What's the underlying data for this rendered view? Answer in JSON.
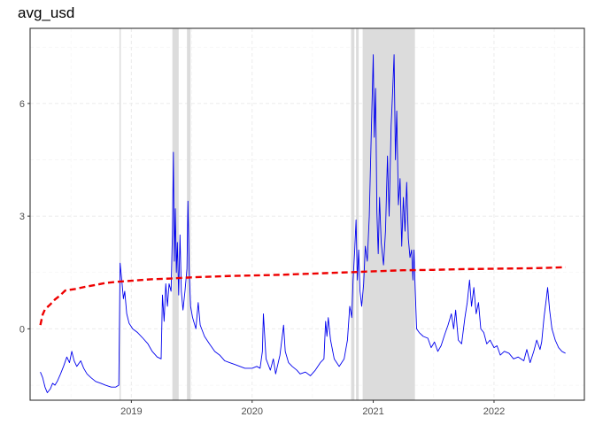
{
  "chart_data": {
    "type": "line",
    "title": "avg_usd",
    "xlabel": "",
    "ylabel": "",
    "xlim": [
      "2018-03-01",
      "2022-10-01"
    ],
    "ylim": [
      -1.9,
      8.0
    ],
    "x_ticks": [
      "2019-01-01",
      "2020-01-01",
      "2021-01-01",
      "2022-01-01"
    ],
    "x_tick_labels": [
      "2019",
      "2020",
      "2021",
      "2022"
    ],
    "y_ticks": [
      0,
      3,
      6
    ],
    "y_tick_labels": [
      "0",
      "3",
      "6"
    ],
    "grid": true,
    "legend": "none",
    "colors": {
      "series": "#0000ee",
      "trend": "#ee0000",
      "bands": "#dcdcdc"
    },
    "shaded_periods": [
      [
        "2018-11-26",
        "2018-11-30"
      ],
      [
        "2019-05-05",
        "2019-05-24"
      ],
      [
        "2019-06-18",
        "2019-06-29"
      ],
      [
        "2020-10-26",
        "2020-11-05"
      ],
      [
        "2020-11-10",
        "2020-11-18"
      ],
      [
        "2020-11-30",
        "2021-05-07"
      ]
    ],
    "series": [
      {
        "style": "solid",
        "points": [
          [
            "2018-04-01",
            -1.15
          ],
          [
            "2018-04-08",
            -1.3
          ],
          [
            "2018-04-15",
            -1.55
          ],
          [
            "2018-04-22",
            -1.7
          ],
          [
            "2018-05-01",
            -1.6
          ],
          [
            "2018-05-08",
            -1.45
          ],
          [
            "2018-05-15",
            -1.5
          ],
          [
            "2018-05-22",
            -1.4
          ],
          [
            "2018-06-01",
            -1.2
          ],
          [
            "2018-06-10",
            -1.0
          ],
          [
            "2018-06-20",
            -0.75
          ],
          [
            "2018-06-28",
            -0.9
          ],
          [
            "2018-07-05",
            -0.6
          ],
          [
            "2018-07-12",
            -0.85
          ],
          [
            "2018-07-20",
            -1.0
          ],
          [
            "2018-08-01",
            -0.85
          ],
          [
            "2018-08-10",
            -1.05
          ],
          [
            "2018-08-20",
            -1.2
          ],
          [
            "2018-09-01",
            -1.3
          ],
          [
            "2018-09-15",
            -1.4
          ],
          [
            "2018-10-01",
            -1.45
          ],
          [
            "2018-10-15",
            -1.5
          ],
          [
            "2018-11-01",
            -1.55
          ],
          [
            "2018-11-15",
            -1.55
          ],
          [
            "2018-11-24",
            -1.5
          ],
          [
            "2018-11-28",
            1.75
          ],
          [
            "2018-12-03",
            1.3
          ],
          [
            "2018-12-08",
            0.8
          ],
          [
            "2018-12-12",
            1.0
          ],
          [
            "2018-12-18",
            0.4
          ],
          [
            "2018-12-25",
            0.15
          ],
          [
            "2019-01-05",
            0.0
          ],
          [
            "2019-01-20",
            -0.1
          ],
          [
            "2019-02-05",
            -0.25
          ],
          [
            "2019-02-20",
            -0.4
          ],
          [
            "2019-03-05",
            -0.6
          ],
          [
            "2019-03-20",
            -0.75
          ],
          [
            "2019-04-01",
            -0.8
          ],
          [
            "2019-04-05",
            0.9
          ],
          [
            "2019-04-10",
            0.2
          ],
          [
            "2019-04-15",
            1.2
          ],
          [
            "2019-04-20",
            0.6
          ],
          [
            "2019-04-25",
            1.2
          ],
          [
            "2019-05-01",
            1.0
          ],
          [
            "2019-05-05",
            2.5
          ],
          [
            "2019-05-08",
            4.7
          ],
          [
            "2019-05-11",
            1.8
          ],
          [
            "2019-05-14",
            3.2
          ],
          [
            "2019-05-17",
            1.5
          ],
          [
            "2019-05-20",
            2.3
          ],
          [
            "2019-05-24",
            0.9
          ],
          [
            "2019-05-28",
            2.5
          ],
          [
            "2019-06-01",
            1.0
          ],
          [
            "2019-06-06",
            0.5
          ],
          [
            "2019-06-12",
            1.0
          ],
          [
            "2019-06-18",
            1.6
          ],
          [
            "2019-06-21",
            3.4
          ],
          [
            "2019-06-25",
            1.5
          ],
          [
            "2019-06-29",
            0.6
          ],
          [
            "2019-07-05",
            0.3
          ],
          [
            "2019-07-15",
            0.0
          ],
          [
            "2019-07-22",
            0.7
          ],
          [
            "2019-07-28",
            0.1
          ],
          [
            "2019-08-10",
            -0.2
          ],
          [
            "2019-08-25",
            -0.4
          ],
          [
            "2019-09-10",
            -0.6
          ],
          [
            "2019-09-25",
            -0.7
          ],
          [
            "2019-10-10",
            -0.85
          ],
          [
            "2019-10-25",
            -0.9
          ],
          [
            "2019-11-10",
            -0.95
          ],
          [
            "2019-11-25",
            -1.0
          ],
          [
            "2019-12-10",
            -1.05
          ],
          [
            "2020-01-01",
            -1.05
          ],
          [
            "2020-01-15",
            -1.0
          ],
          [
            "2020-01-25",
            -1.05
          ],
          [
            "2020-02-01",
            -0.6
          ],
          [
            "2020-02-04",
            0.4
          ],
          [
            "2020-02-08",
            -0.2
          ],
          [
            "2020-02-12",
            -0.8
          ],
          [
            "2020-02-25",
            -1.1
          ],
          [
            "2020-03-05",
            -0.8
          ],
          [
            "2020-03-12",
            -1.2
          ],
          [
            "2020-03-25",
            -0.7
          ],
          [
            "2020-04-01",
            -0.2
          ],
          [
            "2020-04-05",
            0.1
          ],
          [
            "2020-04-10",
            -0.6
          ],
          [
            "2020-04-20",
            -0.9
          ],
          [
            "2020-05-01",
            -1.0
          ],
          [
            "2020-05-15",
            -1.1
          ],
          [
            "2020-05-25",
            -1.2
          ],
          [
            "2020-06-10",
            -1.15
          ],
          [
            "2020-06-25",
            -1.25
          ],
          [
            "2020-07-10",
            -1.1
          ],
          [
            "2020-07-25",
            -0.9
          ],
          [
            "2020-08-05",
            -0.8
          ],
          [
            "2020-08-10",
            0.2
          ],
          [
            "2020-08-14",
            -0.2
          ],
          [
            "2020-08-18",
            0.3
          ],
          [
            "2020-08-25",
            -0.3
          ],
          [
            "2020-09-05",
            -0.8
          ],
          [
            "2020-09-20",
            -1.0
          ],
          [
            "2020-10-05",
            -0.8
          ],
          [
            "2020-10-15",
            -0.3
          ],
          [
            "2020-10-22",
            0.6
          ],
          [
            "2020-10-28",
            0.3
          ],
          [
            "2020-11-01",
            1.3
          ],
          [
            "2020-11-06",
            2.1
          ],
          [
            "2020-11-10",
            2.9
          ],
          [
            "2020-11-14",
            1.3
          ],
          [
            "2020-11-18",
            2.1
          ],
          [
            "2020-11-22",
            1.0
          ],
          [
            "2020-11-27",
            0.6
          ],
          [
            "2020-12-03",
            1.2
          ],
          [
            "2020-12-08",
            2.2
          ],
          [
            "2020-12-14",
            1.8
          ],
          [
            "2020-12-20",
            3.0
          ],
          [
            "2020-12-26",
            5.2
          ],
          [
            "2021-01-01",
            7.3
          ],
          [
            "2021-01-04",
            5.1
          ],
          [
            "2021-01-08",
            6.4
          ],
          [
            "2021-01-12",
            3.1
          ],
          [
            "2021-01-16",
            2.0
          ],
          [
            "2021-01-20",
            3.5
          ],
          [
            "2021-01-25",
            2.3
          ],
          [
            "2021-02-01",
            1.7
          ],
          [
            "2021-02-07",
            2.6
          ],
          [
            "2021-02-13",
            4.6
          ],
          [
            "2021-02-18",
            3.0
          ],
          [
            "2021-02-24",
            5.4
          ],
          [
            "2021-03-01",
            6.4
          ],
          [
            "2021-03-05",
            7.3
          ],
          [
            "2021-03-09",
            4.5
          ],
          [
            "2021-03-13",
            5.8
          ],
          [
            "2021-03-18",
            3.3
          ],
          [
            "2021-03-23",
            4.0
          ],
          [
            "2021-03-28",
            2.2
          ],
          [
            "2021-04-02",
            3.5
          ],
          [
            "2021-04-07",
            2.6
          ],
          [
            "2021-04-12",
            3.9
          ],
          [
            "2021-04-17",
            2.4
          ],
          [
            "2021-04-22",
            1.9
          ],
          [
            "2021-04-27",
            2.1
          ],
          [
            "2021-05-01",
            1.3
          ],
          [
            "2021-05-04",
            2.1
          ],
          [
            "2021-05-08",
            1.0
          ],
          [
            "2021-05-12",
            0.0
          ],
          [
            "2021-05-20",
            -0.1
          ],
          [
            "2021-06-01",
            -0.2
          ],
          [
            "2021-06-15",
            -0.25
          ],
          [
            "2021-06-25",
            -0.5
          ],
          [
            "2021-07-05",
            -0.35
          ],
          [
            "2021-07-15",
            -0.6
          ],
          [
            "2021-07-25",
            -0.45
          ],
          [
            "2021-08-05",
            -0.15
          ],
          [
            "2021-08-15",
            0.1
          ],
          [
            "2021-08-25",
            0.4
          ],
          [
            "2021-09-01",
            0.0
          ],
          [
            "2021-09-07",
            0.5
          ],
          [
            "2021-09-15",
            -0.3
          ],
          [
            "2021-09-25",
            -0.4
          ],
          [
            "2021-10-05",
            0.3
          ],
          [
            "2021-10-12",
            0.7
          ],
          [
            "2021-10-19",
            1.3
          ],
          [
            "2021-10-25",
            0.6
          ],
          [
            "2021-11-01",
            1.1
          ],
          [
            "2021-11-08",
            0.4
          ],
          [
            "2021-11-15",
            0.7
          ],
          [
            "2021-11-22",
            0.0
          ],
          [
            "2021-12-01",
            -0.1
          ],
          [
            "2021-12-10",
            -0.4
          ],
          [
            "2021-12-20",
            -0.3
          ],
          [
            "2022-01-01",
            -0.5
          ],
          [
            "2022-01-10",
            -0.45
          ],
          [
            "2022-01-20",
            -0.7
          ],
          [
            "2022-02-01",
            -0.6
          ],
          [
            "2022-02-15",
            -0.65
          ],
          [
            "2022-03-01",
            -0.8
          ],
          [
            "2022-03-15",
            -0.75
          ],
          [
            "2022-04-01",
            -0.85
          ],
          [
            "2022-04-10",
            -0.55
          ],
          [
            "2022-04-20",
            -0.9
          ],
          [
            "2022-05-01",
            -0.6
          ],
          [
            "2022-05-10",
            -0.3
          ],
          [
            "2022-05-20",
            -0.55
          ],
          [
            "2022-05-25",
            -0.35
          ],
          [
            "2022-06-01",
            0.3
          ],
          [
            "2022-06-08",
            0.8
          ],
          [
            "2022-06-12",
            1.1
          ],
          [
            "2022-06-18",
            0.5
          ],
          [
            "2022-06-25",
            0.0
          ],
          [
            "2022-07-05",
            -0.3
          ],
          [
            "2022-07-15",
            -0.5
          ],
          [
            "2022-07-25",
            -0.6
          ],
          [
            "2022-08-05",
            -0.65
          ]
        ]
      },
      {
        "style": "dashed",
        "points": [
          [
            "2018-04-01",
            0.1
          ],
          [
            "2018-04-08",
            0.38
          ],
          [
            "2018-04-15",
            0.52
          ],
          [
            "2018-05-01",
            0.65
          ],
          [
            "2018-05-15",
            0.78
          ],
          [
            "2018-06-01",
            0.9
          ],
          [
            "2018-06-15",
            1.02
          ],
          [
            "2018-07-15",
            1.06
          ],
          [
            "2018-08-15",
            1.12
          ],
          [
            "2018-09-15",
            1.17
          ],
          [
            "2018-10-15",
            1.22
          ],
          [
            "2018-11-15",
            1.25
          ],
          [
            "2019-01-01",
            1.28
          ],
          [
            "2019-03-01",
            1.32
          ],
          [
            "2019-05-01",
            1.34
          ],
          [
            "2019-07-01",
            1.37
          ],
          [
            "2019-09-01",
            1.39
          ],
          [
            "2019-11-01",
            1.41
          ],
          [
            "2020-01-01",
            1.42
          ],
          [
            "2020-04-01",
            1.44
          ],
          [
            "2020-07-01",
            1.47
          ],
          [
            "2020-10-01",
            1.5
          ],
          [
            "2021-01-01",
            1.53
          ],
          [
            "2021-04-01",
            1.56
          ],
          [
            "2021-07-01",
            1.57
          ],
          [
            "2021-10-01",
            1.59
          ],
          [
            "2022-01-01",
            1.6
          ],
          [
            "2022-04-01",
            1.61
          ],
          [
            "2022-06-01",
            1.62
          ],
          [
            "2022-08-05",
            1.64
          ]
        ]
      }
    ]
  }
}
